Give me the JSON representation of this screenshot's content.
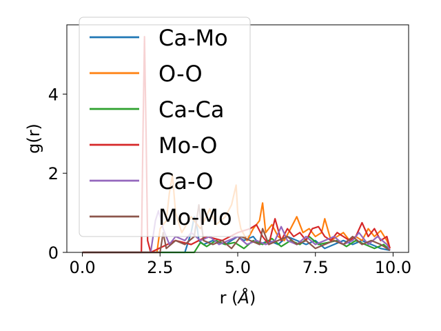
{
  "chart_data": {
    "type": "line",
    "xlabel_main": "r (",
    "xlabel_unit": "Å",
    "xlabel_end": ")",
    "ylabel": "g(r)",
    "xlim": [
      -0.5,
      10.5
    ],
    "ylim": [
      0,
      5.75
    ],
    "xticks": [
      0,
      2.5,
      5,
      7.5,
      10
    ],
    "xtick_labels": [
      "0.0",
      "2.5",
      "5.0",
      "7.5",
      "10.0"
    ],
    "yticks": [
      0,
      2,
      4
    ],
    "ytick_labels": [
      "0",
      "2",
      "4"
    ],
    "grid": false,
    "legend_position": "upper-left",
    "series": [
      {
        "name": "Ca-Mo",
        "color": "#1f77b4",
        "x": [
          0,
          3.3,
          3.5,
          3.6,
          3.7,
          3.75,
          3.9,
          4.2,
          4.6,
          5.0,
          5.2,
          5.5,
          5.7,
          6.0,
          6.3,
          6.6,
          6.9,
          7.2,
          7.5,
          7.8,
          8.1,
          8.4,
          8.7,
          9.0,
          9.3,
          9.6,
          9.9
        ],
        "y": [
          0,
          0,
          0.5,
          0.9,
          0.6,
          0.3,
          0.2,
          0.3,
          0.2,
          0.4,
          0.3,
          0.4,
          0.2,
          0.3,
          0.2,
          0.4,
          0.3,
          0.2,
          0.3,
          0.1,
          0.2,
          0.3,
          0.2,
          0.3,
          0.2,
          0.1,
          0.05
        ]
      },
      {
        "name": "O-O",
        "color": "#ff7f0e",
        "x": [
          0,
          2.4,
          2.5,
          2.7,
          2.8,
          2.9,
          3.0,
          3.2,
          3.5,
          3.8,
          4.1,
          4.3,
          4.6,
          4.8,
          4.95,
          5.0,
          5.1,
          5.3,
          5.5,
          5.7,
          5.8,
          5.9,
          6.1,
          6.3,
          6.5,
          6.7,
          6.9,
          7.1,
          7.3,
          7.5,
          7.7,
          7.8,
          8.0,
          8.2,
          8.4,
          8.6,
          8.8,
          9.0,
          9.2,
          9.4,
          9.6,
          9.8,
          9.9
        ],
        "y": [
          0,
          0,
          0.6,
          0.8,
          1.5,
          1.95,
          1.0,
          0.5,
          0.9,
          0.6,
          1.1,
          0.7,
          0.9,
          1.2,
          1.7,
          1.0,
          0.6,
          0.3,
          0.6,
          0.8,
          1.25,
          0.5,
          0.7,
          0.4,
          0.3,
          0.6,
          0.9,
          0.5,
          0.6,
          0.4,
          0.5,
          0.85,
          0.3,
          0.4,
          0.5,
          0.3,
          0.4,
          0.3,
          0.6,
          0.4,
          0.55,
          0.3,
          0.1
        ]
      },
      {
        "name": "Ca-Ca",
        "color": "#2ca02c",
        "x": [
          0,
          3.6,
          3.8,
          4.0,
          4.3,
          4.6,
          4.9,
          5.2,
          5.5,
          5.8,
          6.1,
          6.4,
          6.7,
          7.0,
          7.3,
          7.6,
          7.9,
          8.2,
          8.5,
          8.8,
          9.1,
          9.4,
          9.7,
          9.9
        ],
        "y": [
          0,
          0,
          0.25,
          0.15,
          0.3,
          0.2,
          0.25,
          0.1,
          0.3,
          0.2,
          0.35,
          0.15,
          0.3,
          0.2,
          0.4,
          0.2,
          0.25,
          0.3,
          0.15,
          0.3,
          0.2,
          0.1,
          0.2,
          0.05
        ]
      },
      {
        "name": "Mo-O",
        "color": "#d62728",
        "x": [
          0,
          1.9,
          1.95,
          2.0,
          2.05,
          2.1,
          2.2,
          3.0,
          3.5,
          4.0,
          4.5,
          5.0,
          5.4,
          5.6,
          5.8,
          6.0,
          6.2,
          6.4,
          6.6,
          6.8,
          7.0,
          7.2,
          7.4,
          7.6,
          7.8,
          8.0,
          8.2,
          8.4,
          8.6,
          8.8,
          9.0,
          9.2,
          9.4,
          9.6,
          9.8,
          9.9
        ],
        "y": [
          0,
          0,
          3.0,
          5.45,
          3.0,
          0.3,
          0,
          0.3,
          0.2,
          0.4,
          0.3,
          0.5,
          0.6,
          0.7,
          0.4,
          0.2,
          0.85,
          0.3,
          0.6,
          0.4,
          0.5,
          0.3,
          0.6,
          0.65,
          0.4,
          0.3,
          0.5,
          0.4,
          0.3,
          0.4,
          0.75,
          0.4,
          0.6,
          0.3,
          0.4,
          0.1
        ]
      },
      {
        "name": "Ca-O",
        "color": "#9467bd",
        "x": [
          0,
          2.2,
          2.35,
          2.45,
          2.6,
          2.8,
          3.0,
          3.3,
          3.5,
          3.8,
          4.1,
          4.4,
          4.7,
          5.0,
          5.3,
          5.6,
          5.9,
          6.2,
          6.4,
          6.6,
          6.9,
          7.2,
          7.5,
          7.8,
          8.1,
          8.4,
          8.7,
          8.9,
          9.2,
          9.5,
          9.8,
          9.9
        ],
        "y": [
          0,
          0,
          0.8,
          1.05,
          0.6,
          0.2,
          0.4,
          0.3,
          0.5,
          0.3,
          0.4,
          0.2,
          0.3,
          0.4,
          0.2,
          0.3,
          0.2,
          0.3,
          0.65,
          0.3,
          0.2,
          0.4,
          0.2,
          0.3,
          0.4,
          0.2,
          0.3,
          0.5,
          0.2,
          0.4,
          0.2,
          0.05
        ]
      },
      {
        "name": "Mo-Mo",
        "color": "#8c564b",
        "x": [
          0,
          2.5,
          2.6,
          2.7,
          3.0,
          3.3,
          3.6,
          3.75,
          3.9,
          4.2,
          4.5,
          4.8,
          5.1,
          5.4,
          5.7,
          5.8,
          6.0,
          6.3,
          6.6,
          6.9,
          7.2,
          7.5,
          7.8,
          8.1,
          8.4,
          8.7,
          9.0,
          9.3,
          9.6,
          9.9
        ],
        "y": [
          0,
          0,
          0.5,
          0.1,
          0.3,
          0.2,
          0.4,
          1.2,
          0.3,
          0.2,
          0.3,
          0.1,
          0.4,
          0.3,
          0.2,
          0.6,
          0.2,
          0.3,
          0.4,
          0.2,
          0.3,
          0.1,
          0.2,
          0.3,
          0.2,
          0.4,
          0.2,
          0.3,
          0.2,
          0.05
        ]
      }
    ]
  }
}
